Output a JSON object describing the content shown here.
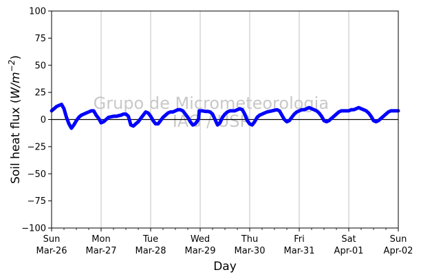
{
  "chart_data": {
    "type": "line",
    "xlabel": "Day",
    "ylabel_prefix": "Soil heat flux (",
    "ylabel_unit_main": "W/m",
    "ylabel_unit_exp": "−2",
    "ylabel_suffix": ")",
    "ylim": [
      -100,
      100
    ],
    "yticks": [
      -100,
      -75,
      -50,
      -25,
      0,
      25,
      50,
      75,
      100
    ],
    "xlim": [
      "2023-03-26",
      "2023-04-02"
    ],
    "xticks": [
      {
        "day": "Sun",
        "date": "Mar-26"
      },
      {
        "day": "Mon",
        "date": "Mar-27"
      },
      {
        "day": "Tue",
        "date": "Mar-28"
      },
      {
        "day": "Wed",
        "date": "Mar-29"
      },
      {
        "day": "Thu",
        "date": "Mar-30"
      },
      {
        "day": "Fri",
        "date": "Mar-31"
      },
      {
        "day": "Sat",
        "date": "Apr-01"
      },
      {
        "day": "Sun",
        "date": "Apr-02"
      }
    ],
    "grid": "vertical",
    "reference_line": 0,
    "watermark": [
      "Grupo de Micrometeorologia",
      "IAG / USP"
    ],
    "colors": {
      "series": "#0000ff",
      "grid": "#b0b0b0",
      "watermark": "#c8c8c8"
    },
    "series": [
      {
        "x": [
          0.0,
          0.05,
          0.1,
          0.15,
          0.2,
          0.25,
          0.3,
          0.35,
          0.4,
          0.45,
          0.5,
          0.55,
          0.6,
          0.65,
          0.7,
          0.75,
          0.8,
          0.85,
          0.9,
          0.95,
          1.0,
          1.05,
          1.1,
          1.15,
          1.2,
          1.25,
          1.3,
          1.35,
          1.4,
          1.45,
          1.5,
          1.55,
          1.6,
          1.65,
          1.7,
          1.75,
          1.8,
          1.85,
          1.9,
          1.95,
          2.0,
          2.05,
          2.1,
          2.15,
          2.2,
          2.25,
          2.3,
          2.35,
          2.4,
          2.45,
          2.5,
          2.55,
          2.6,
          2.65,
          2.7,
          2.75,
          2.8,
          2.85,
          2.9,
          2.95,
          2.97,
          2.98,
          3.0,
          3.05,
          3.1,
          3.15,
          3.2,
          3.25,
          3.3,
          3.35,
          3.4,
          3.45,
          3.5,
          3.55,
          3.6,
          3.65,
          3.7,
          3.75,
          3.8,
          3.85,
          3.9,
          3.95,
          4.0,
          4.05,
          4.1,
          4.15,
          4.2,
          4.25,
          4.3,
          4.35,
          4.4,
          4.45,
          4.5,
          4.55,
          4.6,
          4.65,
          4.7,
          4.75,
          4.8,
          4.85,
          4.9,
          4.95,
          5.0,
          5.05,
          5.1,
          5.15,
          5.2,
          5.25,
          5.3,
          5.35,
          5.4,
          5.45,
          5.5,
          5.55,
          5.6,
          5.65,
          5.7,
          5.75,
          5.8,
          5.85,
          5.9,
          5.95,
          6.0,
          6.05,
          6.1,
          6.15,
          6.2,
          6.25,
          6.3,
          6.35,
          6.4,
          6.45,
          6.5,
          6.55,
          6.6,
          6.65,
          6.7,
          6.75,
          6.8,
          6.85,
          6.9,
          6.95,
          7.0
        ],
        "y": [
          8,
          10,
          12,
          13,
          14,
          10,
          2,
          -4,
          -8,
          -5,
          -1,
          2,
          4,
          5,
          6,
          7,
          8,
          8,
          4,
          1,
          -3,
          -2,
          0,
          2,
          2.5,
          3,
          3,
          3.5,
          4,
          5,
          5,
          3,
          -5,
          -6,
          -4,
          -2,
          1,
          4,
          7,
          6,
          3,
          -1,
          -4,
          -4,
          -1,
          2,
          4,
          6,
          7,
          7,
          8,
          9,
          9,
          8,
          5,
          2,
          -2,
          -5,
          -4,
          -1,
          1,
          8,
          8,
          8,
          7.5,
          7.5,
          7,
          5,
          0,
          -5,
          -3,
          2,
          5,
          7,
          8,
          8,
          8,
          9,
          10,
          9,
          5,
          -1,
          -4,
          -5,
          -2,
          2,
          4,
          5,
          6,
          7,
          7.5,
          8,
          8.5,
          9,
          8,
          4,
          0,
          -2,
          -1,
          2,
          5,
          7,
          8,
          9,
          9,
          10,
          11,
          10,
          9,
          8,
          6,
          3,
          -1,
          -2,
          -1,
          1,
          3,
          5,
          7,
          8,
          8,
          8,
          8,
          9,
          9,
          10,
          11,
          10,
          9,
          8,
          6,
          3,
          -1,
          -2,
          -1,
          1,
          3,
          5,
          7,
          8,
          8,
          8,
          8
        ]
      }
    ]
  }
}
